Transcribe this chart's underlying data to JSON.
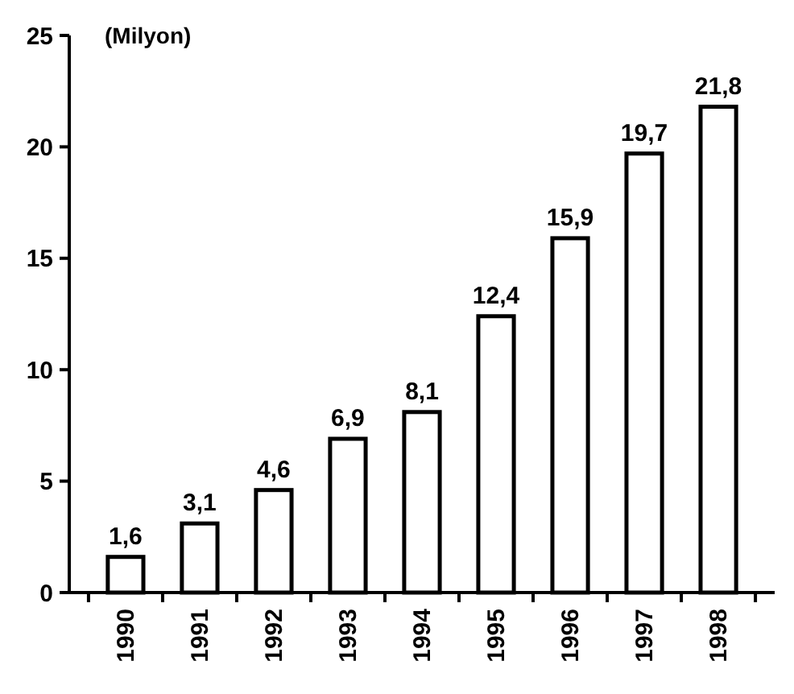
{
  "chart_data": {
    "type": "bar",
    "ylabel": "(Milyon)",
    "categories": [
      "1990",
      "1991",
      "1992",
      "1993",
      "1994",
      "1995",
      "1996",
      "1997",
      "1998"
    ],
    "values": [
      1.6,
      3.1,
      4.6,
      6.9,
      8.1,
      12.4,
      15.9,
      19.7,
      21.8
    ],
    "value_labels": [
      "1,6",
      "3,1",
      "4,6",
      "6,9",
      "8,1",
      "12,4",
      "15,9",
      "19,7",
      "21,8"
    ],
    "color": "#000000",
    "ylim": [
      0,
      25
    ],
    "yticks": [
      0,
      5,
      10,
      15,
      20,
      25
    ],
    "grid": false
  }
}
